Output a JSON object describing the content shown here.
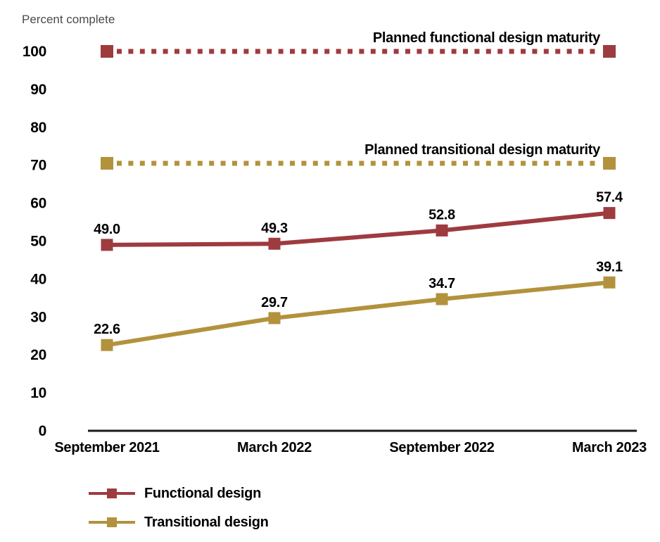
{
  "chart_data": {
    "type": "line",
    "title": "Percent complete",
    "categories": [
      "September 2021",
      "March 2022",
      "September 2022",
      "March 2023"
    ],
    "series": [
      {
        "name": "Functional design",
        "color": "#9e3b3f",
        "values": [
          49.0,
          49.3,
          52.8,
          57.4
        ]
      },
      {
        "name": "Transitional design",
        "color": "#b2923c",
        "values": [
          22.6,
          29.7,
          34.7,
          39.1
        ]
      }
    ],
    "planned_lines": [
      {
        "label": "Planned functional design maturity",
        "value": 100,
        "color": "#9e3b3f"
      },
      {
        "label": "Planned transitional design maturity",
        "value": 70.5,
        "color": "#b2923c"
      }
    ],
    "ylabel": "Percent complete",
    "ylim": [
      0,
      100
    ],
    "ytick_step": 10,
    "grid": false,
    "legend_position": "bottom-left",
    "value_label_decimals": 1,
    "axis_color": "#1a1a1a",
    "text_color": "#000000"
  }
}
